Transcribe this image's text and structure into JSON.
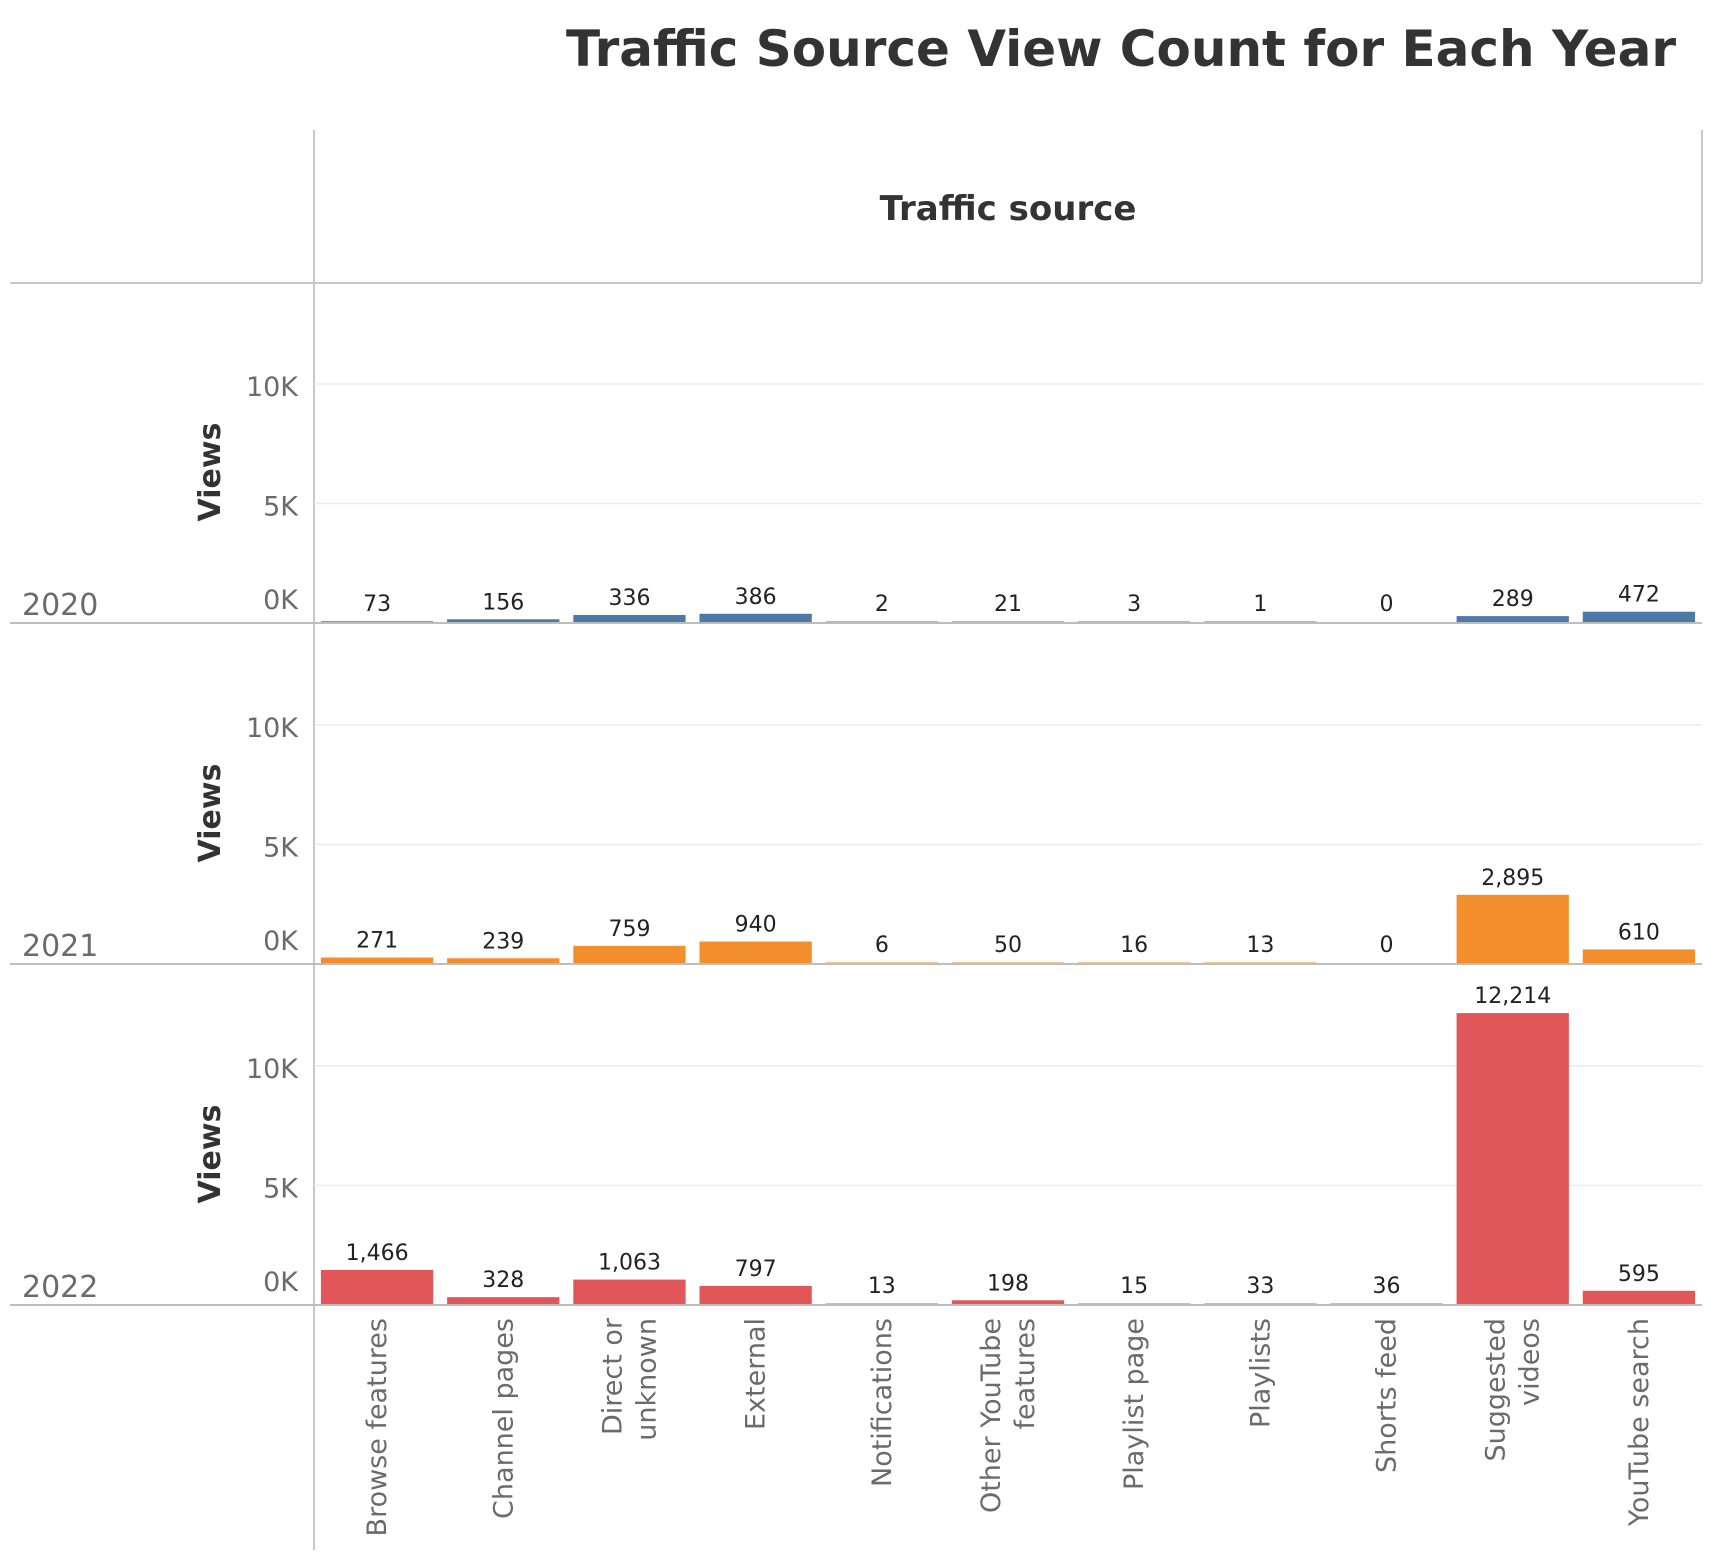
{
  "chart_data": {
    "type": "bar",
    "title": "Traffic Source View Count for Each Year",
    "column_header": "Traffic source",
    "ylabel": "Views",
    "ylim": [
      0,
      14000
    ],
    "yticks": [
      0,
      5000,
      10000
    ],
    "ytick_labels": [
      "0K",
      "5K",
      "10K"
    ],
    "grid": true,
    "categories": [
      [
        "Browse features"
      ],
      [
        "Channel pages"
      ],
      [
        "Direct or",
        "unknown"
      ],
      [
        "External"
      ],
      [
        "Notifications"
      ],
      [
        "Other YouTube",
        "features"
      ],
      [
        "Playlist page"
      ],
      [
        "Playlists"
      ],
      [
        "Shorts feed"
      ],
      [
        "Suggested",
        "videos"
      ],
      [
        "YouTube search"
      ]
    ],
    "series": [
      {
        "name": "2020",
        "color": "#4e79a7",
        "values": [
          73,
          156,
          336,
          386,
          2,
          21,
          3,
          1,
          0,
          289,
          472
        ],
        "labels": [
          "73",
          "156",
          "336",
          "386",
          "2",
          "21",
          "3",
          "1",
          "0",
          "289",
          "472"
        ]
      },
      {
        "name": "2021",
        "color": "#f28e2b",
        "values": [
          271,
          239,
          759,
          940,
          6,
          50,
          16,
          13,
          0,
          2895,
          610
        ],
        "labels": [
          "271",
          "239",
          "759",
          "940",
          "6",
          "50",
          "16",
          "13",
          "0",
          "2,895",
          "610"
        ]
      },
      {
        "name": "2022",
        "color": "#e15759",
        "values": [
          1466,
          328,
          1063,
          797,
          13,
          198,
          15,
          33,
          36,
          12214,
          595
        ],
        "labels": [
          "1,466",
          "328",
          "1,063",
          "797",
          "13",
          "198",
          "15",
          "33",
          "36",
          "12,214",
          "595"
        ]
      }
    ]
  }
}
